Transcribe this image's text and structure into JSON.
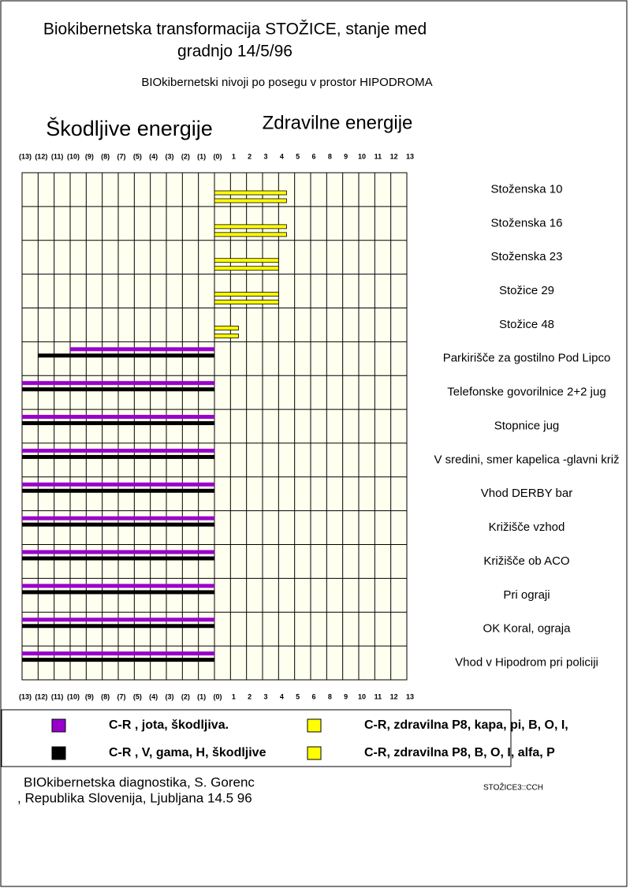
{
  "chart_data": {
    "type": "bar",
    "orientation": "horizontal",
    "title_lines": [
      "Biokibernetska transformacija STOŽICE, stanje med",
      "gradnjo 14/5/96"
    ],
    "subtitle": "BIOkibernetski nivoji  po posegu v prostor HIPODROMA",
    "left_heading": "Škodljive energije",
    "right_heading": "Zdravilne energije",
    "categories": [
      "Stoženska 10",
      "Stoženska 16",
      "Stoženska 23",
      "Stožice 29",
      "Stožice 48",
      "Parkirišče za gostilno Pod Lipco",
      "Telefonske govorilnice 2+2 jug",
      "Stopnice jug",
      "V sredini, smer kapelica -glavni križ",
      "Vhod DERBY bar",
      "Križišče vzhod",
      "Križišče  ob ACO",
      "Pri ograji",
      "OK Koral, ograja",
      "Vhod v Hipodrom pri policiji"
    ],
    "series": [
      {
        "name": "C-R , jota, škodljiva.",
        "color": "#9900cc",
        "values": [
          null,
          null,
          null,
          null,
          null,
          -9,
          -12,
          -12,
          -12,
          -12,
          -12,
          -12,
          -12,
          -12,
          -12
        ]
      },
      {
        "name": "C-R , V, gama, H, škodljive",
        "color": "#000000",
        "values": [
          null,
          null,
          null,
          null,
          null,
          -11,
          -12,
          -12,
          -12,
          -12,
          -12,
          -12,
          -12,
          -12,
          -12
        ]
      },
      {
        "name": "C-R, zdravilna P8,  kapa, pi, B, O, I,",
        "color": "#ffff00",
        "values": [
          4.5,
          4.5,
          4,
          4,
          1.5,
          null,
          null,
          null,
          null,
          null,
          null,
          null,
          null,
          null,
          null
        ]
      },
      {
        "name": "C-R, zdravilna P8,  B, O, I, alfa, P",
        "color": "#ffff00",
        "values": [
          4.5,
          4.5,
          4,
          4,
          1.5,
          null,
          null,
          null,
          null,
          null,
          null,
          null,
          null,
          null,
          null
        ]
      }
    ],
    "xlim": [
      -12,
      12
    ],
    "xticks": [
      {
        "value": -12,
        "label": "(13)"
      },
      {
        "value": -11,
        "label": "(12)"
      },
      {
        "value": -10,
        "label": "(11)"
      },
      {
        "value": -9,
        "label": "(10)"
      },
      {
        "value": -8,
        "label": "(9)"
      },
      {
        "value": -7,
        "label": "(8)"
      },
      {
        "value": -6,
        "label": "(7)"
      },
      {
        "value": -5,
        "label": "(5)"
      },
      {
        "value": -4,
        "label": "(4)"
      },
      {
        "value": -3,
        "label": "(3)"
      },
      {
        "value": -2,
        "label": "(2)"
      },
      {
        "value": -1,
        "label": "(1)"
      },
      {
        "value": 0,
        "label": "(0)"
      },
      1,
      2,
      3,
      4,
      5,
      6,
      {
        "value": 7,
        "label": "8"
      },
      {
        "value": 8,
        "label": "9"
      },
      {
        "value": 9,
        "label": "10"
      },
      {
        "value": 10,
        "label": "11"
      },
      {
        "value": 11,
        "label": "12"
      },
      {
        "value": 12,
        "label": "13"
      }
    ],
    "grid": true,
    "grid_background": "#fffff0",
    "footer_lines": [
      "BIOkibernetska diagnostika,  S. Gorenc",
      ", Republika Slovenija, Ljubljana  14.5 96"
    ],
    "file_label": "STOŽICE3::CCH"
  }
}
